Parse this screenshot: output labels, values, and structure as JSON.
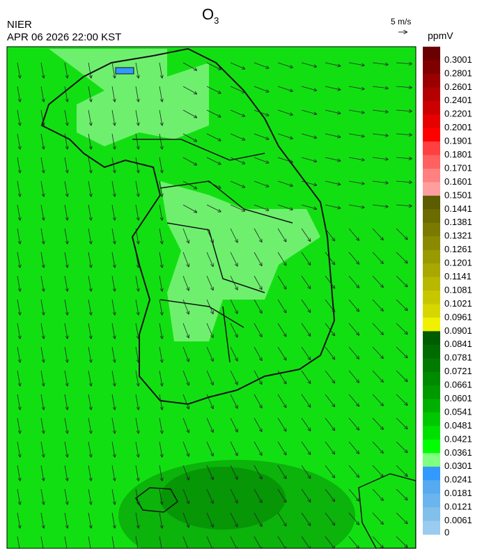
{
  "header": {
    "title": "O",
    "title_sub": "3",
    "agency": "NIER",
    "datetime": "APR 06 2026 22:00 KST"
  },
  "wind_scale": {
    "label": "5 m/s"
  },
  "colorbar": {
    "unit": "ppmV",
    "levels": [
      {
        "label": "0.3001",
        "color": "#6b0000"
      },
      {
        "label": "0.2801",
        "color": "#800000"
      },
      {
        "label": "0.2601",
        "color": "#990000"
      },
      {
        "label": "0.2401",
        "color": "#b30000"
      },
      {
        "label": "0.2201",
        "color": "#cc0000"
      },
      {
        "label": "0.2001",
        "color": "#e60000"
      },
      {
        "label": "0.1901",
        "color": "#ff0000"
      },
      {
        "label": "0.1801",
        "color": "#ff4040"
      },
      {
        "label": "0.1701",
        "color": "#ff6060"
      },
      {
        "label": "0.1601",
        "color": "#ff8080"
      },
      {
        "label": "0.1501",
        "color": "#ff9e9e"
      },
      {
        "label": "0.1441",
        "color": "#5c5c00"
      },
      {
        "label": "0.1381",
        "color": "#6b6b00"
      },
      {
        "label": "0.1321",
        "color": "#7a7a00"
      },
      {
        "label": "0.1261",
        "color": "#8a8a00"
      },
      {
        "label": "0.1201",
        "color": "#999900"
      },
      {
        "label": "0.1141",
        "color": "#a8a800"
      },
      {
        "label": "0.1081",
        "color": "#b8b800"
      },
      {
        "label": "0.1021",
        "color": "#c7c700"
      },
      {
        "label": "0.0961",
        "color": "#d6d600"
      },
      {
        "label": "0.0901",
        "color": "#f0f000"
      },
      {
        "label": "0.0841",
        "color": "#005c00"
      },
      {
        "label": "0.0781",
        "color": "#006b00"
      },
      {
        "label": "0.0721",
        "color": "#007a00"
      },
      {
        "label": "0.0661",
        "color": "#008a00"
      },
      {
        "label": "0.0601",
        "color": "#009900"
      },
      {
        "label": "0.0541",
        "color": "#00b000"
      },
      {
        "label": "0.0481",
        "color": "#00c800"
      },
      {
        "label": "0.0421",
        "color": "#00e000"
      },
      {
        "label": "0.0361",
        "color": "#00ff00"
      },
      {
        "label": "0.0301",
        "color": "#80ff80"
      },
      {
        "label": "0.0241",
        "color": "#3399ff"
      },
      {
        "label": "0.0181",
        "color": "#55aaf0"
      },
      {
        "label": "0.0121",
        "color": "#6bb5ee"
      },
      {
        "label": "0.0061",
        "color": "#80c0ea"
      },
      {
        "label": "0",
        "color": "#99ccee"
      }
    ]
  }
}
